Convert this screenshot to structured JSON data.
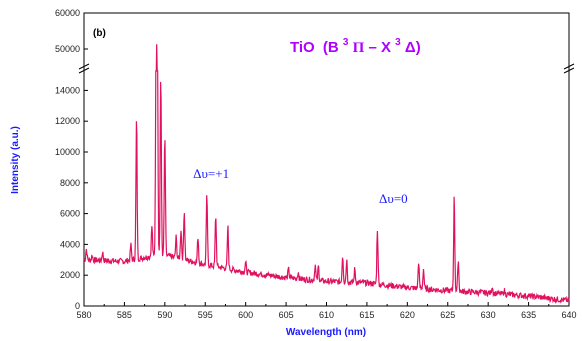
{
  "chart_data": {
    "type": "line",
    "panel_label": "(b)",
    "title": "TiO (B³Π – X³Δ)",
    "title_parts": {
      "species": "TiO",
      "open": "(B",
      "sup1": "3",
      "pi": "Π",
      "dash": " – X",
      "sup2": "3",
      "delta": "Δ)"
    },
    "xlabel": "Wavelength (nm)",
    "ylabel": "Intensity (a.u.)",
    "xlim": [
      580,
      640
    ],
    "ylim_lower": [
      0,
      15000
    ],
    "ylim_upper": [
      45000,
      60000
    ],
    "axis_break": true,
    "grid": false,
    "x_ticks": [
      "580",
      "585",
      "590",
      "595",
      "600",
      "605",
      "610",
      "615",
      "620",
      "625",
      "630",
      "635",
      "640"
    ],
    "y_ticks_lower": [
      "0",
      "2000",
      "4000",
      "6000",
      "8000",
      "10000",
      "12000",
      "14000"
    ],
    "y_ticks_upper": [
      "50000",
      "60000"
    ],
    "annotations": [
      {
        "text": "Δυ=+1",
        "x": 593.5,
        "y": 8300
      },
      {
        "text": "Δυ=0",
        "x": 616.5,
        "y": 6700
      }
    ],
    "series": [
      {
        "color": "#e0115f",
        "baseline": [
          [
            580,
            3000
          ],
          [
            585,
            2900
          ],
          [
            588,
            3200
          ],
          [
            590,
            3300
          ],
          [
            595,
            2700
          ],
          [
            600,
            2200
          ],
          [
            605,
            1850
          ],
          [
            610,
            1600
          ],
          [
            615,
            1500
          ],
          [
            620,
            1200
          ],
          [
            625,
            1000
          ],
          [
            630,
            850
          ],
          [
            635,
            650
          ],
          [
            640,
            350
          ]
        ],
        "peaks": [
          {
            "x": 580.3,
            "y": 3700
          },
          {
            "x": 581.0,
            "y": 3300
          },
          {
            "x": 582.3,
            "y": 3500
          },
          {
            "x": 585.8,
            "y": 4000
          },
          {
            "x": 586.5,
            "y": 12300
          },
          {
            "x": 588.4,
            "y": 5200
          },
          {
            "x": 589.0,
            "y": 51500
          },
          {
            "x": 589.5,
            "y": 15000
          },
          {
            "x": 590.0,
            "y": 11000
          },
          {
            "x": 591.4,
            "y": 4500
          },
          {
            "x": 592.0,
            "y": 5000
          },
          {
            "x": 592.4,
            "y": 6200
          },
          {
            "x": 594.1,
            "y": 4500
          },
          {
            "x": 595.2,
            "y": 7200
          },
          {
            "x": 596.3,
            "y": 5900
          },
          {
            "x": 597.8,
            "y": 5200
          },
          {
            "x": 600.0,
            "y": 2800
          },
          {
            "x": 605.3,
            "y": 2400
          },
          {
            "x": 606.5,
            "y": 2200
          },
          {
            "x": 608.6,
            "y": 2700
          },
          {
            "x": 609.0,
            "y": 2600
          },
          {
            "x": 612.0,
            "y": 3300
          },
          {
            "x": 612.5,
            "y": 3000
          },
          {
            "x": 613.5,
            "y": 2400
          },
          {
            "x": 616.3,
            "y": 5000
          },
          {
            "x": 621.4,
            "y": 2900
          },
          {
            "x": 622.0,
            "y": 2400
          },
          {
            "x": 625.8,
            "y": 7200
          },
          {
            "x": 626.3,
            "y": 3000
          },
          {
            "x": 630.5,
            "y": 1300
          },
          {
            "x": 632.0,
            "y": 1000
          }
        ]
      }
    ]
  }
}
